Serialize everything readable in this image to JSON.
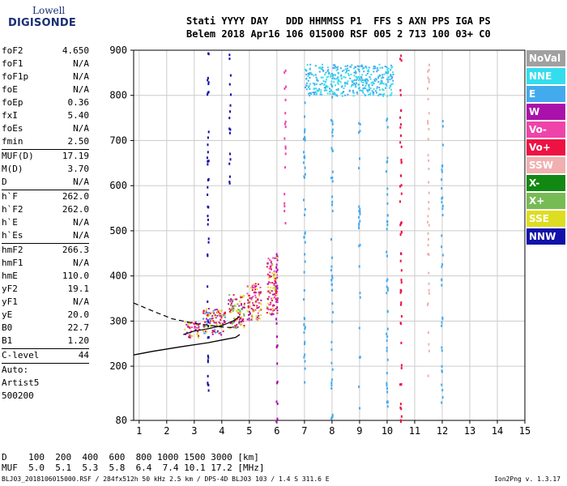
{
  "logo": {
    "line1": "Lowell",
    "line2": "DIGISONDE"
  },
  "header": {
    "row1": "Stati YYYY DAY   DDD HHMMSS P1  FFS S AXN PPS IGA PS",
    "row2": "Belem 2018 Apr16 106 015000 RSF 005 2 713 100 03+ C0"
  },
  "params": [
    {
      "label": "foF2",
      "value": "4.650"
    },
    {
      "label": "foF1",
      "value": "N/A"
    },
    {
      "label": "foF1p",
      "value": "N/A"
    },
    {
      "label": "foE",
      "value": "N/A"
    },
    {
      "label": "foEp",
      "value": "0.36"
    },
    {
      "label": "fxI",
      "value": "5.40"
    },
    {
      "label": "foEs",
      "value": "N/A"
    },
    {
      "label": "fmin",
      "value": "2.50"
    },
    {
      "label": "MUF(D)",
      "value": "17.19",
      "sep": true
    },
    {
      "label": "M(D)",
      "value": "3.70"
    },
    {
      "label": "D",
      "value": "N/A"
    },
    {
      "label": "h`F",
      "value": "262.0",
      "sep": true
    },
    {
      "label": "h`F2",
      "value": "262.0"
    },
    {
      "label": "h`E",
      "value": "N/A"
    },
    {
      "label": "h`Es",
      "value": "N/A"
    },
    {
      "label": "hmF2",
      "value": "266.3",
      "sep": true
    },
    {
      "label": "hmF1",
      "value": "N/A"
    },
    {
      "label": "hmE",
      "value": "110.0"
    },
    {
      "label": "yF2",
      "value": "19.1"
    },
    {
      "label": "yF1",
      "value": "N/A"
    },
    {
      "label": "yE",
      "value": "20.0"
    },
    {
      "label": "B0",
      "value": "22.7"
    },
    {
      "label": "B1",
      "value": "1.20"
    },
    {
      "label": "C-level",
      "value": "44",
      "sep": true
    }
  ],
  "auto": [
    "Auto:",
    "Artist5",
    "500200"
  ],
  "legend": [
    {
      "label": "NoVal",
      "color": "#a0a0a0"
    },
    {
      "label": "NNE",
      "color": "#33ddee"
    },
    {
      "label": "E",
      "color": "#44aaee"
    },
    {
      "label": "W",
      "color": "#aa11aa"
    },
    {
      "label": "Vo-",
      "color": "#ee44aa"
    },
    {
      "label": "Vo+",
      "color": "#ee1144"
    },
    {
      "label": "SSW",
      "color": "#f0b0b0"
    },
    {
      "label": "X-",
      "color": "#118811"
    },
    {
      "label": "X+",
      "color": "#77bb55"
    },
    {
      "label": "SSE",
      "color": "#dddd22"
    },
    {
      "label": "NNW",
      "color": "#1111aa"
    }
  ],
  "dtable": {
    "row1": "D    100  200  400  600  800 1000 1500 3000 [km]",
    "row2": "MUF  5.0  5.1  5.3  5.8  6.4  7.4 10.1 17.2 [MHz]"
  },
  "footer": "BLJ03_2018106015000.RSF / 284fx512h 50 kHz 2.5 km / DPS-4D BLJ03 103 / 1.4 S 311.6 E",
  "version": "Ion2Png v. 1.3.17",
  "chart_data": {
    "type": "scatter",
    "xlim": [
      0.8,
      15
    ],
    "ylim": [
      80,
      900
    ],
    "xticks": [
      1,
      2,
      3,
      4,
      5,
      6,
      7,
      8,
      9,
      10,
      11,
      12,
      13,
      14,
      15
    ],
    "yticks": [
      80,
      200,
      300,
      400,
      500,
      600,
      700,
      800,
      900
    ],
    "grid": true,
    "traces": {
      "f_trace_o": {
        "x": [
          2.6,
          3.0,
          3.5,
          4.0,
          4.4,
          4.65
        ],
        "y": [
          270,
          278,
          283,
          290,
          300,
          310
        ]
      },
      "profile": {
        "x": [
          0.8,
          1.5,
          2.5,
          3.5,
          4.0,
          4.5,
          4.65
        ],
        "y": [
          225,
          233,
          243,
          252,
          258,
          264,
          270
        ]
      },
      "profile_dashed": {
        "x": [
          0.8,
          1.5,
          2.2,
          3.0,
          4.0,
          4.5
        ],
        "y": [
          340,
          322,
          305,
          295,
          287,
          285
        ]
      }
    },
    "clusters": [
      {
        "x": [
          2.6,
          3.2
        ],
        "y": [
          265,
          300
        ],
        "colors": [
          "#ee1144",
          "#aa11aa",
          "#dddd22",
          "#ee44aa"
        ]
      },
      {
        "x": [
          3.3,
          4.1
        ],
        "y": [
          270,
          330
        ],
        "colors": [
          "#ee1144",
          "#dddd22",
          "#44aaee",
          "#aa11aa"
        ]
      },
      {
        "x": [
          4.2,
          4.8
        ],
        "y": [
          285,
          360
        ],
        "colors": [
          "#ee1144",
          "#dddd22",
          "#77bb55",
          "#aa11aa"
        ]
      },
      {
        "x": [
          4.9,
          5.4
        ],
        "y": [
          300,
          385
        ],
        "colors": [
          "#ee1144",
          "#dddd22",
          "#aa11aa",
          "#ee44aa"
        ]
      },
      {
        "x": [
          5.6,
          6.0
        ],
        "y": [
          315,
          445
        ],
        "colors": [
          "#ee1144",
          "#ee44aa",
          "#dddd22",
          "#aa11aa"
        ]
      },
      {
        "x": [
          7.0,
          10.2
        ],
        "y": [
          800,
          870
        ],
        "colors": [
          "#44aaee",
          "#33ddee"
        ]
      }
    ],
    "vertical_lines": [
      {
        "x": 3.5,
        "y": [
          120,
          900
        ],
        "color": "#1111aa"
      },
      {
        "x": 4.3,
        "y": [
          600,
          900
        ],
        "color": "#1111aa"
      },
      {
        "x": 6.0,
        "y": [
          80,
          460
        ],
        "color": "#aa11aa"
      },
      {
        "x": 6.3,
        "y": [
          500,
          870
        ],
        "color": "#ee44aa"
      },
      {
        "x": 7.0,
        "y": [
          80,
          800
        ],
        "color": "#44aaee"
      },
      {
        "x": 8.0,
        "y": [
          80,
          800
        ],
        "color": "#44aaee"
      },
      {
        "x": 9.0,
        "y": [
          100,
          760
        ],
        "color": "#44aaee"
      },
      {
        "x": 10.0,
        "y": [
          100,
          760
        ],
        "color": "#44aaee"
      },
      {
        "x": 10.5,
        "y": [
          80,
          900
        ],
        "color": "#ee1144"
      },
      {
        "x": 11.5,
        "y": [
          180,
          870
        ],
        "color": "#f0b0b0"
      },
      {
        "x": 12.0,
        "y": [
          100,
          760
        ],
        "color": "#44aaee"
      }
    ]
  }
}
